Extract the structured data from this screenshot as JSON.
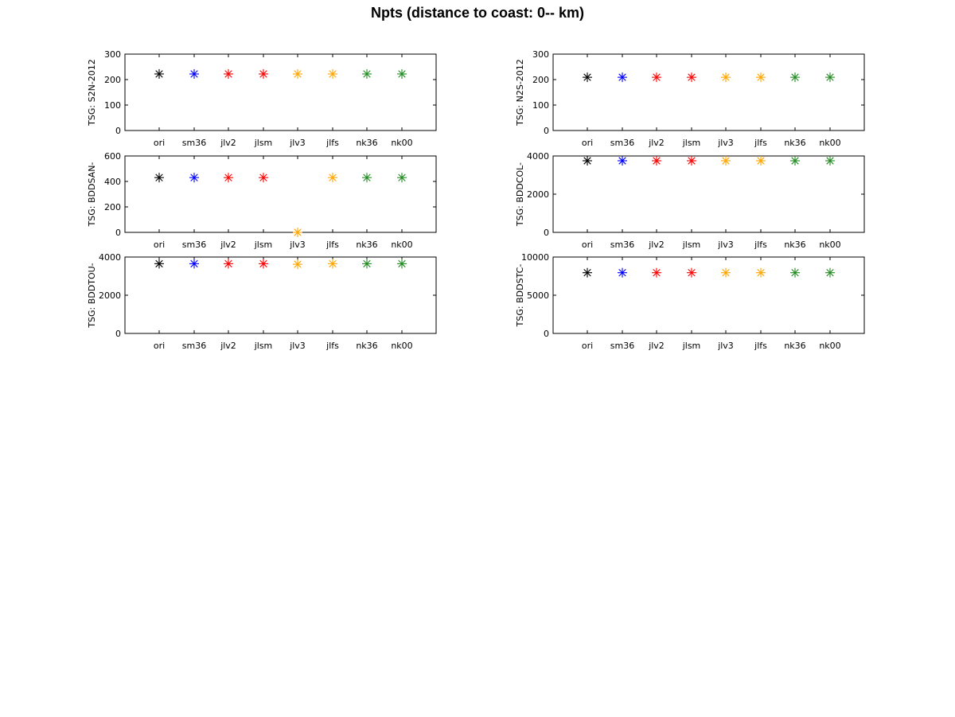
{
  "title": "Npts (distance to coast: 0-- km)",
  "chart_data": [
    {
      "type": "scatter",
      "ylabel": "TSG: S2N-2012",
      "categories": [
        "ori",
        "sm36",
        "jlv2",
        "jlsm",
        "jlv3",
        "jlfs",
        "nk36",
        "nk00"
      ],
      "values": [
        222,
        222,
        222,
        222,
        222,
        222,
        222,
        222
      ],
      "ylim": [
        0,
        300
      ],
      "yticks": [
        0,
        100,
        200,
        300
      ]
    },
    {
      "type": "scatter",
      "ylabel": "TSG: N2S-2012",
      "categories": [
        "ori",
        "sm36",
        "jlv2",
        "jlsm",
        "jlv3",
        "jlfs",
        "nk36",
        "nk00"
      ],
      "values": [
        209,
        209,
        209,
        209,
        209,
        209,
        209,
        209
      ],
      "ylim": [
        0,
        300
      ],
      "yticks": [
        0,
        100,
        200,
        300
      ]
    },
    {
      "type": "scatter",
      "ylabel": "TSG: BDDSAN-",
      "categories": [
        "ori",
        "sm36",
        "jlv2",
        "jlsm",
        "jlv3",
        "jlfs",
        "nk36",
        "nk00"
      ],
      "values": [
        430,
        430,
        430,
        430,
        0,
        430,
        430,
        430
      ],
      "ylim": [
        0,
        600
      ],
      "yticks": [
        0,
        200,
        400,
        600
      ]
    },
    {
      "type": "scatter",
      "ylabel": "TSG: BDDCOL-",
      "categories": [
        "ori",
        "sm36",
        "jlv2",
        "jlsm",
        "jlv3",
        "jlfs",
        "nk36",
        "nk00"
      ],
      "values": [
        3750,
        3750,
        3750,
        3750,
        3750,
        3750,
        3750,
        3750
      ],
      "ylim": [
        0,
        4000
      ],
      "yticks": [
        0,
        2000,
        4000
      ]
    },
    {
      "type": "scatter",
      "ylabel": "TSG: BDDTOU-",
      "categories": [
        "ori",
        "sm36",
        "jlv2",
        "jlsm",
        "jlv3",
        "jlfs",
        "nk36",
        "nk00"
      ],
      "values": [
        3650,
        3650,
        3650,
        3650,
        3620,
        3650,
        3650,
        3650
      ],
      "ylim": [
        0,
        4000
      ],
      "yticks": [
        0,
        2000,
        4000
      ]
    },
    {
      "type": "scatter",
      "ylabel": "TSG: BDDSTC-",
      "categories": [
        "ori",
        "sm36",
        "jlv2",
        "jlsm",
        "jlv3",
        "jlfs",
        "nk36",
        "nk00"
      ],
      "values": [
        7950,
        7950,
        7950,
        7950,
        7950,
        7950,
        7950,
        7950
      ],
      "ylim": [
        0,
        10000
      ],
      "yticks": [
        0,
        5000,
        10000
      ]
    }
  ],
  "colors": {
    "ori": "#000000",
    "sm36": "#0000ff",
    "jlv2": "#ff0000",
    "jlsm": "#ff0000",
    "jlv3": "#ffa500",
    "jlfs": "#ffa500",
    "nk36": "#228b22",
    "nk00": "#228b22"
  }
}
